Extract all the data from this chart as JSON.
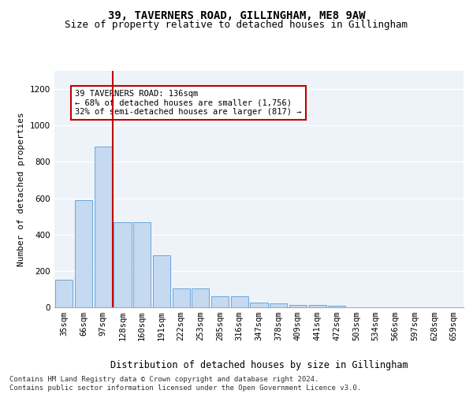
{
  "title1": "39, TAVERNERS ROAD, GILLINGHAM, ME8 9AW",
  "title2": "Size of property relative to detached houses in Gillingham",
  "xlabel": "Distribution of detached houses by size in Gillingham",
  "ylabel": "Number of detached properties",
  "categories": [
    "35sqm",
    "66sqm",
    "97sqm",
    "128sqm",
    "160sqm",
    "191sqm",
    "222sqm",
    "253sqm",
    "285sqm",
    "316sqm",
    "347sqm",
    "378sqm",
    "409sqm",
    "441sqm",
    "472sqm",
    "503sqm",
    "534sqm",
    "566sqm",
    "597sqm",
    "628sqm",
    "659sqm"
  ],
  "values": [
    150,
    590,
    885,
    470,
    470,
    285,
    105,
    105,
    62,
    62,
    28,
    20,
    15,
    13,
    10,
    0,
    0,
    0,
    0,
    0,
    0
  ],
  "bar_color": "#c5d9f0",
  "bar_edge_color": "#5b9bd5",
  "vline_color": "#c00000",
  "vline_x_index": 3,
  "annotation_text": "39 TAVERNERS ROAD: 136sqm\n← 68% of detached houses are smaller (1,756)\n32% of semi-detached houses are larger (817) →",
  "annotation_box_color": "#ffffff",
  "annotation_box_edge": "#c00000",
  "ylim": [
    0,
    1300
  ],
  "yticks": [
    0,
    200,
    400,
    600,
    800,
    1000,
    1200
  ],
  "bg_color": "#eef3f9",
  "footer": "Contains HM Land Registry data © Crown copyright and database right 2024.\nContains public sector information licensed under the Open Government Licence v3.0.",
  "title1_fontsize": 10,
  "title2_fontsize": 9,
  "xlabel_fontsize": 8.5,
  "ylabel_fontsize": 8,
  "tick_fontsize": 7.5,
  "annot_fontsize": 7.5,
  "footer_fontsize": 6.5
}
